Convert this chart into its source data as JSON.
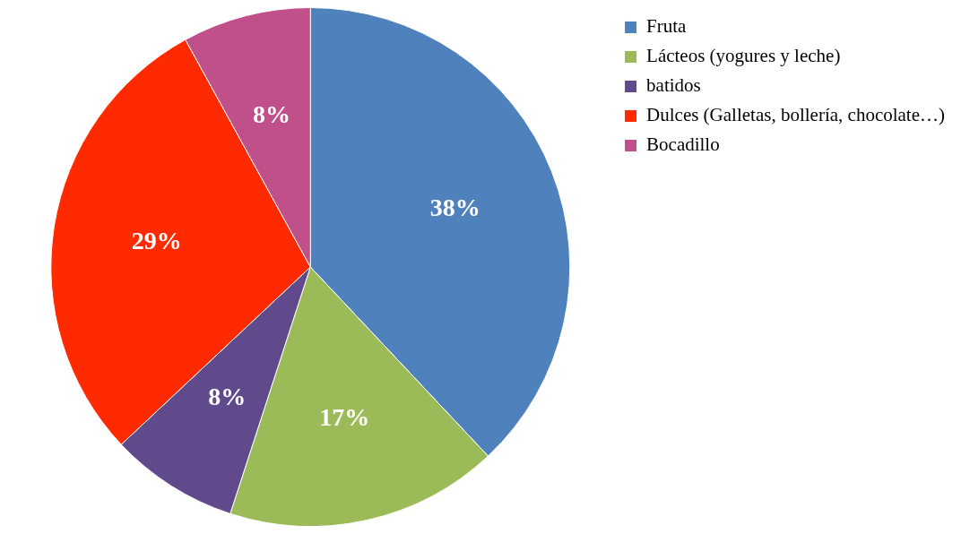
{
  "chart_data": {
    "type": "pie",
    "categories": [
      "Fruta",
      "Lácteos (yogures y leche)",
      "batidos",
      "Dulces (Galletas, bollería, chocolate…)",
      "Bocadillo"
    ],
    "values": [
      38,
      17,
      8,
      29,
      8
    ],
    "colors": [
      "#4f81bd",
      "#9bbb59",
      "#604a8b",
      "#ff2a00",
      "#c0508a"
    ],
    "value_labels": [
      "38%",
      "17%",
      "8%",
      "29%",
      "8%"
    ],
    "legend": "top right"
  }
}
